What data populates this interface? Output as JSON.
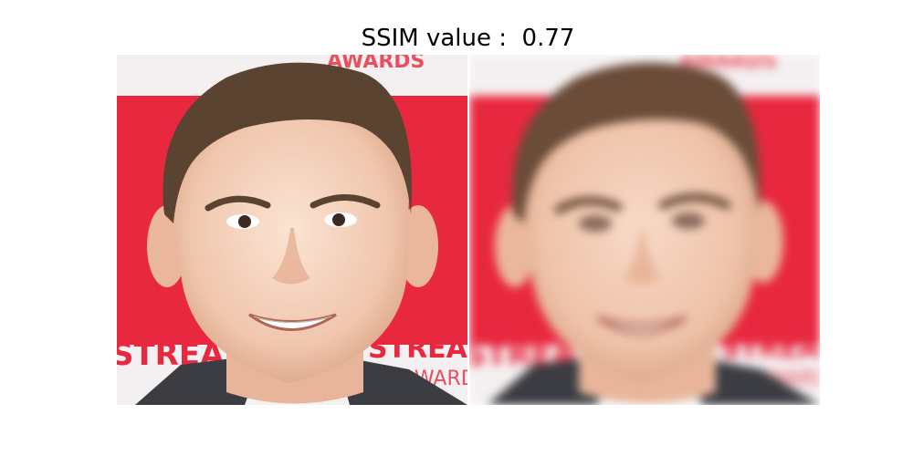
{
  "figure": {
    "title_prefix": "SSIM value : ",
    "ssim_value": "0.77"
  },
  "panels": {
    "original": {
      "backdrop_text_top": "AWARDS",
      "backdrop_text_bottom_1": "STREAM",
      "backdrop_text_bottom_2": "AWARDS"
    },
    "reconstructed": {
      "backdrop_text_top": "AWARDS",
      "backdrop_text_bottom_1": "STREAM",
      "backdrop_text_bottom_2": "AWARDS"
    }
  },
  "colors": {
    "backdrop_red": "#e8283f",
    "backdrop_white": "#f4eff0",
    "skin": "#f1c9b1",
    "hair": "#5a4331",
    "suit": "#3b3d42"
  }
}
